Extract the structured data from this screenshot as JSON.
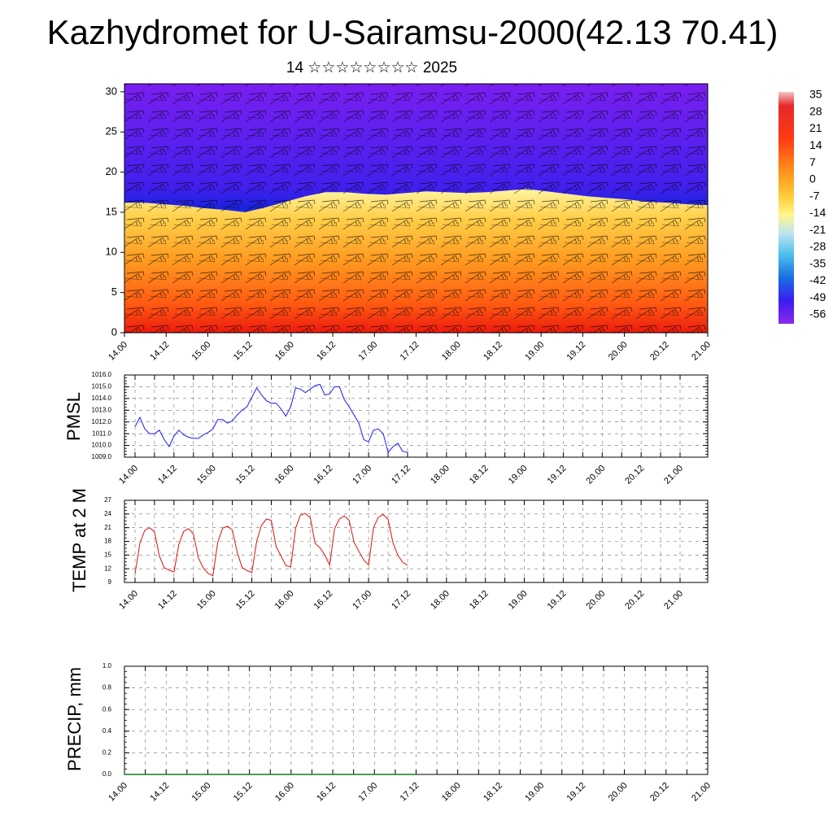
{
  "header": {
    "title": "Kazhydromet for U-Sairamsu-2000(42.13 70.41)",
    "subtitle": "14 ☆☆☆☆☆☆☆☆ 2025"
  },
  "colors": {
    "pmsl_line": "#1a1aff",
    "temp_line": "#e01010",
    "precip_line": "#1a7a1a",
    "grid": "#000000"
  },
  "chart_data": [
    {
      "id": "cross_section",
      "type": "heatmap",
      "title": "",
      "xlabel": "",
      "ylabel": "",
      "ylim": [
        0,
        31
      ],
      "yticks": [
        "0",
        "5",
        "10",
        "15",
        "20",
        "25",
        "30"
      ],
      "xticks": [
        "14.00",
        "14.12",
        "15.00",
        "15.12",
        "16.00",
        "16.12",
        "17.00",
        "17.12",
        "18.00",
        "18.12",
        "19.00",
        "19.12",
        "20.00",
        "20.12",
        "21.00"
      ],
      "colorbar_labels": [
        "35",
        "28",
        "21",
        "14",
        "7",
        "0",
        "-7",
        "-14",
        "-21",
        "-28",
        "-35",
        "-42",
        "-49",
        "-56"
      ],
      "colorbar_range": [
        -60,
        38
      ],
      "freezing_level": [
        16.2,
        16.2,
        16.0,
        15.8,
        15.5,
        15.3,
        15.0,
        15.6,
        16.3,
        17.0,
        17.5,
        17.5,
        17.3,
        17.2,
        17.4,
        17.6,
        17.5,
        17.4,
        17.5,
        17.7,
        17.9,
        17.6,
        17.3,
        17.0,
        16.8,
        16.6,
        16.3,
        16.2,
        16.0,
        15.9
      ],
      "overlay": "wind barbs",
      "grid": false
    },
    {
      "id": "pmsl",
      "type": "line",
      "title": "",
      "ylabel": "PMSL",
      "ylim": [
        1009.0,
        1016.0
      ],
      "yticks": [
        "1009.0",
        "1010.0",
        "1011.0",
        "1012.0",
        "1013.0",
        "1014.0",
        "1015.0",
        "1016.0"
      ],
      "xticks": [
        "14.00",
        "14.12",
        "15.00",
        "15.12",
        "16.00",
        "16.12",
        "17.00",
        "17.12",
        "18.00",
        "18.12",
        "19.00",
        "19.12",
        "20.00",
        "20.12",
        "21.00"
      ],
      "values": [
        1011.6,
        1012.4,
        1011.4,
        1011.0,
        1011.0,
        1011.3,
        1010.5,
        1009.9,
        1010.8,
        1011.3,
        1010.9,
        1010.7,
        1010.6,
        1010.6,
        1010.9,
        1011.1,
        1011.4,
        1012.2,
        1012.2,
        1011.9,
        1012.1,
        1012.6,
        1013.0,
        1013.3,
        1014.1,
        1014.9,
        1014.3,
        1013.8,
        1013.6,
        1013.6,
        1013.1,
        1012.5,
        1013.3,
        1014.9,
        1014.8,
        1014.5,
        1014.8,
        1015.1,
        1015.2,
        1014.3,
        1014.4,
        1015.0,
        1015.0,
        1013.9,
        1013.3,
        1012.6,
        1011.9,
        1010.5,
        1010.3,
        1011.3,
        1011.4,
        1011.0,
        1009.4,
        1009.9,
        1010.2,
        1009.5,
        1009.4
      ],
      "grid": true
    },
    {
      "id": "temp2m",
      "type": "line",
      "title": "",
      "ylabel": "TEMP at 2 M",
      "ylim": [
        9,
        27
      ],
      "yticks": [
        "9",
        "12",
        "15",
        "18",
        "21",
        "24",
        "27"
      ],
      "xticks": [
        "14.00",
        "14.12",
        "15.00",
        "15.12",
        "16.00",
        "16.12",
        "17.00",
        "17.12",
        "18.00",
        "18.12",
        "19.00",
        "19.12",
        "20.00",
        "20.12",
        "21.00"
      ],
      "values": [
        10.9,
        17.6,
        20.4,
        21.0,
        20.1,
        14.8,
        12.2,
        11.7,
        11.3,
        17.3,
        20.2,
        20.8,
        19.6,
        14.4,
        12.2,
        11.0,
        10.5,
        17.8,
        20.9,
        21.3,
        20.5,
        15.6,
        12.3,
        11.6,
        11.2,
        18.1,
        21.5,
        22.9,
        22.6,
        16.8,
        14.8,
        12.7,
        12.4,
        20.9,
        23.8,
        24.1,
        23.2,
        17.6,
        16.6,
        15.0,
        12.8,
        20.8,
        22.9,
        23.6,
        22.6,
        17.8,
        15.8,
        13.9,
        12.8,
        21.0,
        23.3,
        23.9,
        22.8,
        17.7,
        15.0,
        13.4,
        12.8
      ],
      "grid": true
    },
    {
      "id": "precip",
      "type": "line",
      "title": "",
      "ylabel": "PRECIP, mm",
      "ylim": [
        0.0,
        1.0
      ],
      "yticks": [
        "0.0",
        "0.2",
        "0.4",
        "0.6",
        "0.8",
        "1.0"
      ],
      "xticks": [
        "14.00",
        "14.12",
        "15.00",
        "15.12",
        "16.00",
        "16.12",
        "17.00",
        "17.12",
        "18.00",
        "18.12",
        "19.00",
        "19.12",
        "20.00",
        "20.12",
        "21.00"
      ],
      "values": [
        0,
        0,
        0,
        0,
        0,
        0,
        0,
        0,
        0,
        0,
        0,
        0,
        0,
        0,
        0,
        0,
        0,
        0,
        0,
        0,
        0,
        0,
        0,
        0,
        0,
        0,
        0,
        0,
        0,
        0,
        0,
        0,
        0,
        0,
        0,
        0,
        0,
        0,
        0,
        0,
        0,
        0,
        0,
        0,
        0,
        0,
        0,
        0,
        0,
        0,
        0,
        0,
        0,
        0,
        0,
        0,
        0
      ],
      "grid": true
    }
  ]
}
